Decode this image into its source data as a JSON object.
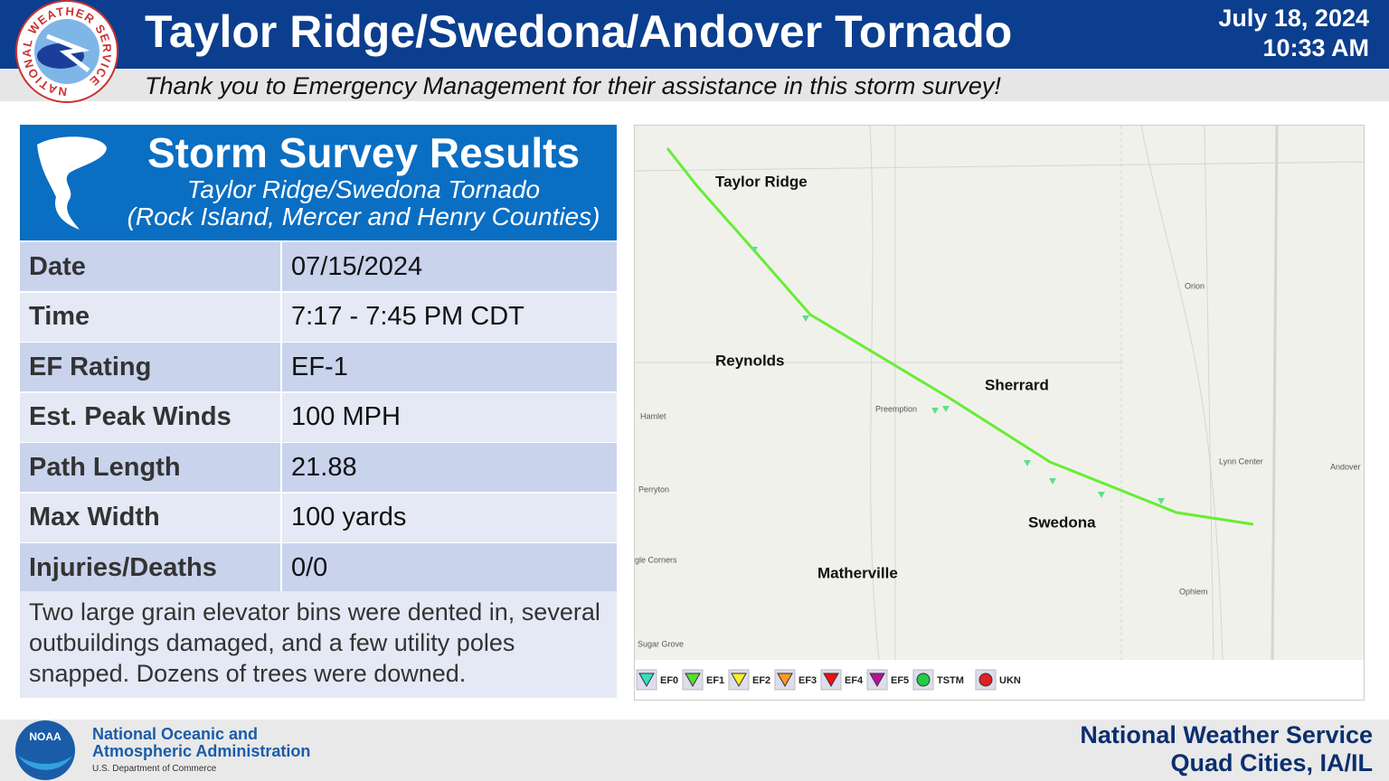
{
  "header": {
    "title": "Taylor Ridge/Swedona/Andover Tornado",
    "date": "July 18, 2024",
    "time": "10:33 AM",
    "subtitle": "Thank you to Emergency Management for their assistance in this storm survey!",
    "logo_text": "NATIONAL WEATHER SERVICE"
  },
  "panel": {
    "title": "Storm Survey Results",
    "subtitle": "Taylor Ridge/Swedona Tornado",
    "counties": "(Rock Island, Mercer and Henry Counties)"
  },
  "table": {
    "rows": [
      [
        "Date",
        "07/15/2024"
      ],
      [
        "Time",
        "7:17 - 7:45 PM CDT"
      ],
      [
        "EF Rating",
        "EF-1"
      ],
      [
        "Est. Peak Winds",
        "100 MPH"
      ],
      [
        "Path Length",
        "21.88"
      ],
      [
        "Max Width",
        "100 yards"
      ],
      [
        "Injuries/Deaths",
        "0/0"
      ]
    ]
  },
  "description": "Two large grain elevator bins were dented in, several outbuildings damaged, and a few utility poles snapped. Dozens of trees were downed.",
  "map": {
    "towns": [
      "Taylor Ridge",
      "Reynolds",
      "Sherrard",
      "Swedona",
      "Matherville"
    ],
    "places": [
      "Hamlet",
      "Perryton",
      "gle Corners",
      "Sugar Grove",
      "Preemption",
      "Orion",
      "Lynn Center",
      "Andover",
      "Ophiem"
    ],
    "legend": [
      "EF0",
      "EF1",
      "EF2",
      "EF3",
      "EF4",
      "EF5",
      "TSTM",
      "UKN"
    ]
  },
  "footer": {
    "noaa_logo": "NOAA",
    "noaa_line1": "National Oceanic and",
    "noaa_line2": "Atmospheric Administration",
    "noaa_dept": "U.S. Department of Commerce",
    "nws": "National Weather Service",
    "office": "Quad Cities, IA/IL"
  }
}
